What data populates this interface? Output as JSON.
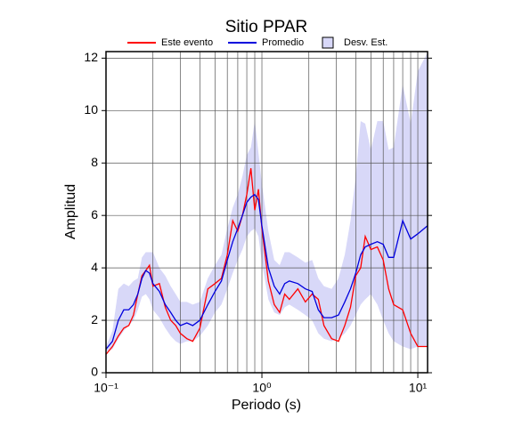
{
  "chart_data": {
    "type": "line",
    "title": "Sitio PPAR",
    "x_label": "Periodo (s)",
    "y_label": "Amplitud",
    "log_x": true,
    "grid": true,
    "xlim": [
      0.1,
      11.55
    ],
    "ylim": [
      0,
      12.25
    ],
    "xticks": [
      {
        "value": 0.1,
        "label": "10⁻¹"
      },
      {
        "value": 1,
        "label": "10⁰"
      },
      {
        "value": 10,
        "label": "10¹"
      }
    ],
    "xminor": [
      0.2,
      0.3,
      0.4,
      0.5,
      0.6,
      0.7,
      0.8,
      0.9,
      2,
      3,
      4,
      5,
      6,
      7,
      8,
      9
    ],
    "yticks": [
      0,
      2,
      4,
      6,
      8,
      10,
      12
    ],
    "x": [
      0.1,
      0.11,
      0.12,
      0.13,
      0.14,
      0.15,
      0.16,
      0.17,
      0.18,
      0.19,
      0.2,
      0.22,
      0.24,
      0.26,
      0.28,
      0.3,
      0.33,
      0.36,
      0.4,
      0.45,
      0.5,
      0.55,
      0.6,
      0.65,
      0.7,
      0.75,
      0.8,
      0.85,
      0.9,
      0.95,
      1.0,
      1.1,
      1.2,
      1.3,
      1.4,
      1.5,
      1.7,
      1.9,
      2.1,
      2.3,
      2.5,
      2.8,
      3.1,
      3.4,
      3.7,
      4.0,
      4.3,
      4.6,
      5.0,
      5.5,
      6,
      6.5,
      7,
      8,
      9,
      10,
      11.5
    ],
    "band": {
      "name": "Desv. Est.",
      "color": "#d8d8f8",
      "lower": [
        0.8,
        0.9,
        1.3,
        1.6,
        1.8,
        2.0,
        2.4,
        2.9,
        3.0,
        2.8,
        2.4,
        2.1,
        1.7,
        1.4,
        1.2,
        1.1,
        1.2,
        1.2,
        1.4,
        1.8,
        2.3,
        2.6,
        3.2,
        3.8,
        4.3,
        4.7,
        5.2,
        5.4,
        5.5,
        5.2,
        4.2,
        2.8,
        2.3,
        2.2,
        2.5,
        2.6,
        2.4,
        2.2,
        2.0,
        1.5,
        1.3,
        1.2,
        1.3,
        1.5,
        1.8,
        2.2,
        2.6,
        2.8,
        3.0,
        2.6,
        2.0,
        1.5,
        1.2,
        1.0,
        0.9,
        1.0,
        1.0
      ],
      "upper": [
        1.0,
        1.6,
        3.2,
        3.4,
        3.3,
        3.5,
        3.6,
        4.4,
        4.6,
        4.6,
        4.6,
        4.0,
        3.7,
        3.3,
        3.0,
        2.7,
        2.7,
        2.6,
        2.7,
        3.6,
        4.1,
        4.5,
        5.5,
        6.3,
        6.8,
        7.5,
        8.3,
        8.6,
        9.6,
        8.4,
        7.2,
        5.4,
        4.3,
        4.1,
        4.6,
        4.6,
        4.4,
        4.2,
        4.3,
        3.6,
        3.3,
        3.2,
        3.6,
        4.5,
        5.8,
        7.5,
        9.6,
        9.5,
        8.5,
        9.6,
        9.6,
        8.5,
        8.6,
        11.0,
        9.5,
        11.5,
        12.2
      ]
    },
    "series": [
      {
        "name": "Este evento",
        "color": "#ff0000",
        "values": [
          0.7,
          1.0,
          1.4,
          1.7,
          1.8,
          2.2,
          3.0,
          3.7,
          3.9,
          4.1,
          3.3,
          3.4,
          2.5,
          2.0,
          1.8,
          1.5,
          1.3,
          1.2,
          1.7,
          3.2,
          3.4,
          3.6,
          4.5,
          5.8,
          5.4,
          6.0,
          6.8,
          7.8,
          6.2,
          7.0,
          5.5,
          3.5,
          2.6,
          2.3,
          3.0,
          2.8,
          3.2,
          2.7,
          3.0,
          2.8,
          1.8,
          1.3,
          1.2,
          1.8,
          2.5,
          3.7,
          4.0,
          5.2,
          4.7,
          4.8,
          4.3,
          3.2,
          2.6,
          2.4,
          1.5,
          1.0,
          1.0
        ]
      },
      {
        "name": "Promedio",
        "color": "#0000dd",
        "values": [
          0.9,
          1.2,
          2.0,
          2.4,
          2.4,
          2.6,
          3.0,
          3.6,
          3.9,
          3.8,
          3.4,
          3.1,
          2.6,
          2.3,
          2.0,
          1.8,
          1.9,
          1.8,
          2.0,
          2.6,
          3.1,
          3.5,
          4.3,
          5.0,
          5.5,
          6.0,
          6.5,
          6.7,
          6.8,
          6.6,
          5.6,
          4.0,
          3.3,
          3.0,
          3.4,
          3.5,
          3.4,
          3.2,
          3.1,
          2.4,
          2.1,
          2.1,
          2.2,
          2.7,
          3.2,
          3.8,
          4.5,
          4.8,
          4.9,
          5.0,
          4.9,
          4.4,
          4.4,
          5.8,
          5.1,
          5.3,
          5.6
        ]
      }
    ]
  }
}
